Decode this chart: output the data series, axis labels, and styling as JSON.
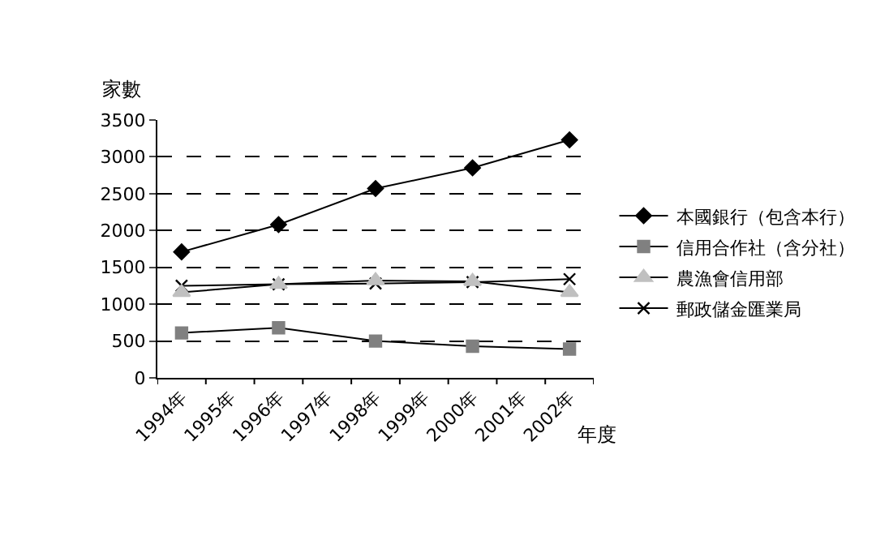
{
  "chart_data": {
    "type": "line",
    "ylabel": "家數",
    "xlabel": "年度",
    "categories": [
      "1994年",
      "1995年",
      "1996年",
      "1997年",
      "1998年",
      "1999年",
      "2000年",
      "2001年",
      "2002年"
    ],
    "series": [
      {
        "name": "本國銀行（包含本行）",
        "color": "#000000",
        "marker": "diamond",
        "values": [
          1710,
          null,
          2080,
          null,
          2570,
          null,
          2850,
          null,
          3230
        ]
      },
      {
        "name": "信用合作社（含分社）",
        "color": "#808080",
        "marker": "square",
        "values": [
          610,
          null,
          680,
          null,
          500,
          null,
          430,
          null,
          390
        ]
      },
      {
        "name": "農漁會信用部",
        "color": "#c0c0c0",
        "marker": "triangle",
        "values": [
          1160,
          null,
          1270,
          null,
          1320,
          null,
          1310,
          null,
          1160
        ]
      },
      {
        "name": "郵政儲金匯業局",
        "color": "#000000",
        "marker": "cross",
        "values": [
          1250,
          null,
          1270,
          null,
          1280,
          null,
          1300,
          null,
          1340
        ]
      }
    ],
    "ylim": [
      0,
      3500
    ],
    "yticks": [
      0,
      500,
      1000,
      1500,
      2000,
      2500,
      3000,
      3500
    ],
    "grid": "y",
    "legend": "right"
  }
}
